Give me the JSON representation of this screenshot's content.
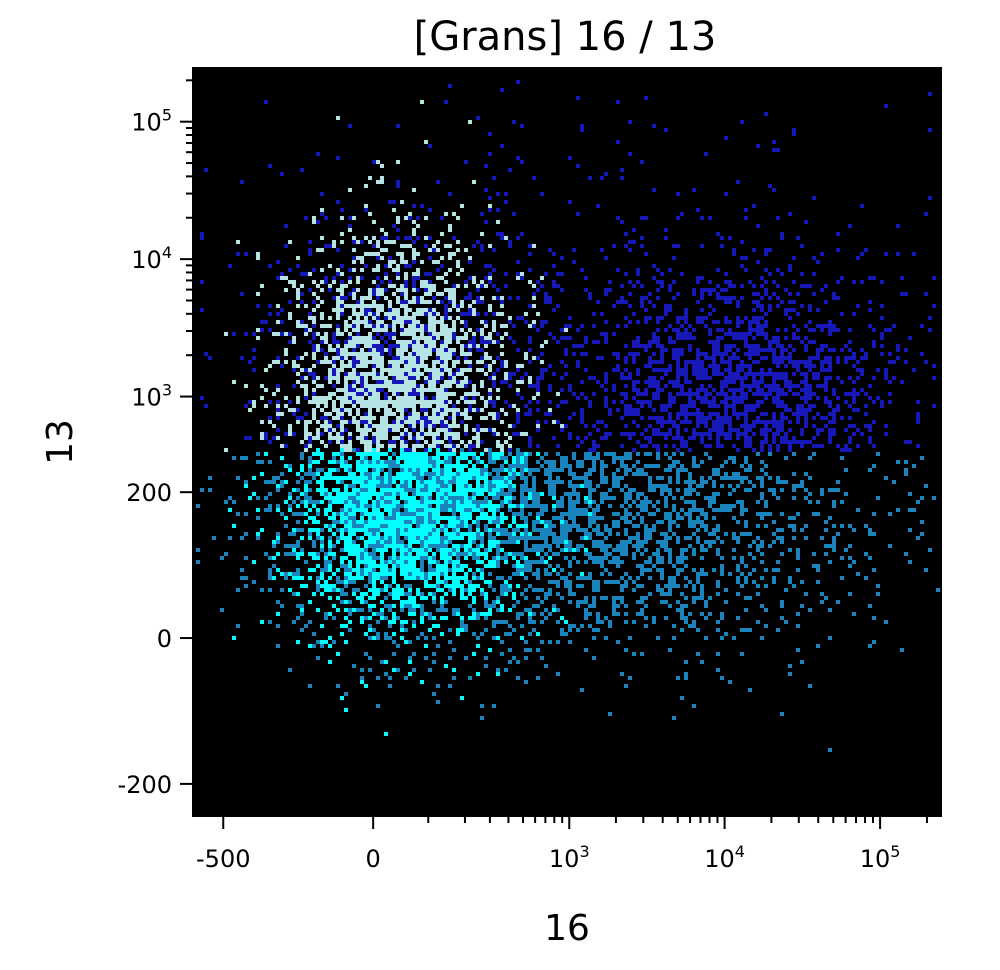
{
  "chart_data": {
    "type": "heatmap",
    "title": "[Grans] 16 / 13",
    "xlabel": "16",
    "ylabel": "13",
    "x_scale": "biexponential",
    "y_scale": "biexponential",
    "xlim": [
      -800,
      250000
    ],
    "ylim": [
      -350,
      250000
    ],
    "x_ticks": [
      {
        "value": -500,
        "base": "-500",
        "exp": ""
      },
      {
        "value": 0,
        "base": "0",
        "exp": ""
      },
      {
        "value": 1000,
        "base": "10",
        "exp": "3"
      },
      {
        "value": 10000,
        "base": "10",
        "exp": "4"
      },
      {
        "value": 100000,
        "base": "10",
        "exp": "5"
      }
    ],
    "y_ticks": [
      {
        "value": -200,
        "base": "-200",
        "exp": ""
      },
      {
        "value": 0,
        "base": "0",
        "exp": ""
      },
      {
        "value": 200,
        "base": "200",
        "exp": ""
      },
      {
        "value": 1000,
        "base": "10",
        "exp": "3"
      },
      {
        "value": 10000,
        "base": "10",
        "exp": "4"
      },
      {
        "value": 100000,
        "base": "10",
        "exp": "5"
      }
    ],
    "background_color": "#000000",
    "colors": {
      "high_cyan": "#00ffff",
      "mid_blue": "#1a84bd",
      "dark_blue": "#1818b8",
      "light_cyan": "#b6e3e3"
    },
    "populations": [
      {
        "name_hint": "upper-left",
        "color": "#b6e3e3",
        "x_center": 60,
        "y_center": 1500,
        "density": "high"
      },
      {
        "name_hint": "lower-left",
        "color": "#00ffff",
        "x_center": 80,
        "y_center": 200,
        "density": "high"
      },
      {
        "name_hint": "lower-middle",
        "color": "#1a84bd",
        "x_center": 3000,
        "y_center": 150,
        "density": "medium"
      },
      {
        "name_hint": "upper-right",
        "color": "#1818b8",
        "x_center": 15000,
        "y_center": 1200,
        "density": "medium"
      }
    ]
  }
}
